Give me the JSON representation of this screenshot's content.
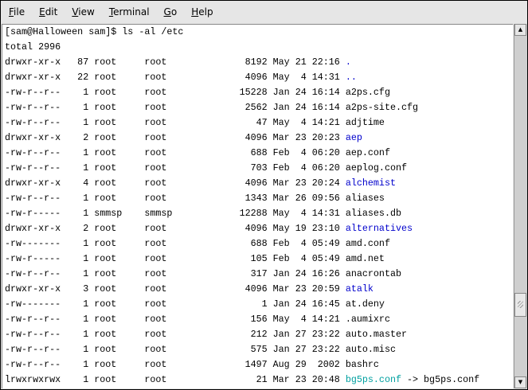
{
  "menu": [
    {
      "key": "F",
      "rest": "ile"
    },
    {
      "key": "E",
      "rest": "dit"
    },
    {
      "key": "V",
      "rest": "iew"
    },
    {
      "key": "T",
      "rest": "erminal"
    },
    {
      "key": "G",
      "rest": "o"
    },
    {
      "key": "H",
      "rest": "elp"
    }
  ],
  "prompt": "[sam@Halloween sam]$ ls -al /etc",
  "total": "total 2996",
  "colors": {
    "directory": "#0000cc",
    "symlink": "#00a0a0"
  },
  "entries": [
    {
      "perms": "drwxr-xr-x",
      "links": "87",
      "owner": "root",
      "group": "root",
      "size": "8192",
      "date": "May 21 22:16",
      "name": ".",
      "type": "dir"
    },
    {
      "perms": "drwxr-xr-x",
      "links": "22",
      "owner": "root",
      "group": "root",
      "size": "4096",
      "date": "May  4 14:31",
      "name": "..",
      "type": "dir"
    },
    {
      "perms": "-rw-r--r--",
      "links": "1",
      "owner": "root",
      "group": "root",
      "size": "15228",
      "date": "Jan 24 16:14",
      "name": "a2ps.cfg",
      "type": "file"
    },
    {
      "perms": "-rw-r--r--",
      "links": "1",
      "owner": "root",
      "group": "root",
      "size": "2562",
      "date": "Jan 24 16:14",
      "name": "a2ps-site.cfg",
      "type": "file"
    },
    {
      "perms": "-rw-r--r--",
      "links": "1",
      "owner": "root",
      "group": "root",
      "size": "47",
      "date": "May  4 14:21",
      "name": "adjtime",
      "type": "file"
    },
    {
      "perms": "drwxr-xr-x",
      "links": "2",
      "owner": "root",
      "group": "root",
      "size": "4096",
      "date": "Mar 23 20:23",
      "name": "aep",
      "type": "dir"
    },
    {
      "perms": "-rw-r--r--",
      "links": "1",
      "owner": "root",
      "group": "root",
      "size": "688",
      "date": "Feb  4 06:20",
      "name": "aep.conf",
      "type": "file"
    },
    {
      "perms": "-rw-r--r--",
      "links": "1",
      "owner": "root",
      "group": "root",
      "size": "703",
      "date": "Feb  4 06:20",
      "name": "aeplog.conf",
      "type": "file"
    },
    {
      "perms": "drwxr-xr-x",
      "links": "4",
      "owner": "root",
      "group": "root",
      "size": "4096",
      "date": "Mar 23 20:24",
      "name": "alchemist",
      "type": "dir"
    },
    {
      "perms": "-rw-r--r--",
      "links": "1",
      "owner": "root",
      "group": "root",
      "size": "1343",
      "date": "Mar 26 09:56",
      "name": "aliases",
      "type": "file"
    },
    {
      "perms": "-rw-r-----",
      "links": "1",
      "owner": "smmsp",
      "group": "smmsp",
      "size": "12288",
      "date": "May  4 14:31",
      "name": "aliases.db",
      "type": "file"
    },
    {
      "perms": "drwxr-xr-x",
      "links": "2",
      "owner": "root",
      "group": "root",
      "size": "4096",
      "date": "May 19 23:10",
      "name": "alternatives",
      "type": "dir"
    },
    {
      "perms": "-rw-------",
      "links": "1",
      "owner": "root",
      "group": "root",
      "size": "688",
      "date": "Feb  4 05:49",
      "name": "amd.conf",
      "type": "file"
    },
    {
      "perms": "-rw-r-----",
      "links": "1",
      "owner": "root",
      "group": "root",
      "size": "105",
      "date": "Feb  4 05:49",
      "name": "amd.net",
      "type": "file"
    },
    {
      "perms": "-rw-r--r--",
      "links": "1",
      "owner": "root",
      "group": "root",
      "size": "317",
      "date": "Jan 24 16:26",
      "name": "anacrontab",
      "type": "file"
    },
    {
      "perms": "drwxr-xr-x",
      "links": "3",
      "owner": "root",
      "group": "root",
      "size": "4096",
      "date": "Mar 23 20:59",
      "name": "atalk",
      "type": "dir"
    },
    {
      "perms": "-rw-------",
      "links": "1",
      "owner": "root",
      "group": "root",
      "size": "1",
      "date": "Jan 24 16:45",
      "name": "at.deny",
      "type": "file"
    },
    {
      "perms": "-rw-r--r--",
      "links": "1",
      "owner": "root",
      "group": "root",
      "size": "156",
      "date": "May  4 14:21",
      "name": ".aumixrc",
      "type": "file"
    },
    {
      "perms": "-rw-r--r--",
      "links": "1",
      "owner": "root",
      "group": "root",
      "size": "212",
      "date": "Jan 27 23:22",
      "name": "auto.master",
      "type": "file"
    },
    {
      "perms": "-rw-r--r--",
      "links": "1",
      "owner": "root",
      "group": "root",
      "size": "575",
      "date": "Jan 27 23:22",
      "name": "auto.misc",
      "type": "file"
    },
    {
      "perms": "-rw-r--r--",
      "links": "1",
      "owner": "root",
      "group": "root",
      "size": "1497",
      "date": "Aug 29  2002",
      "name": "bashrc",
      "type": "file"
    },
    {
      "perms": "lrwxrwxrwx",
      "links": "1",
      "owner": "root",
      "group": "root",
      "size": "21",
      "date": "Mar 23 20:48",
      "name": "bg5ps.conf",
      "type": "link",
      "target": "bg5ps.conf"
    }
  ]
}
